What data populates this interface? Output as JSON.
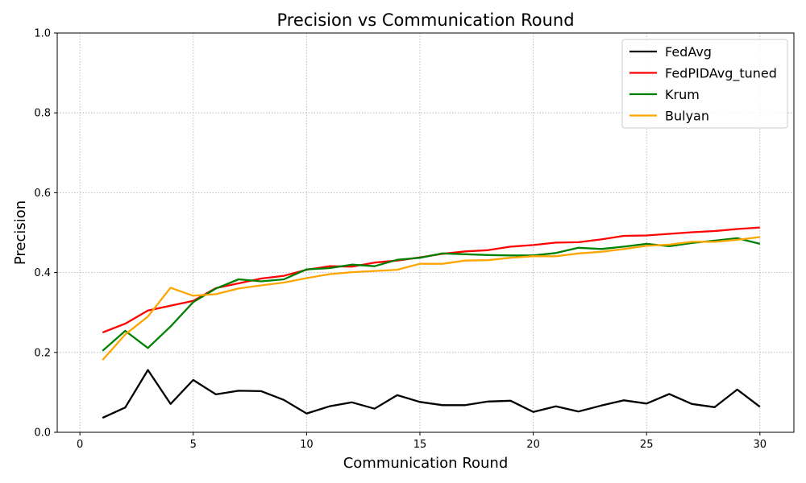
{
  "chart_data": {
    "type": "line",
    "title": "Precision vs Communication Round",
    "xlabel": "Communication Round",
    "ylabel": "Precision",
    "xlim": [
      -1,
      31.5
    ],
    "ylim": [
      0,
      1.0
    ],
    "xticks": [
      0,
      5,
      10,
      15,
      20,
      25,
      30
    ],
    "yticks": [
      0.0,
      0.2,
      0.4,
      0.6,
      0.8,
      1.0
    ],
    "xtick_labels": [
      "0",
      "5",
      "10",
      "15",
      "20",
      "25",
      "30"
    ],
    "ytick_labels": [
      "0.0",
      "0.2",
      "0.4",
      "0.6",
      "0.8",
      "1.0"
    ],
    "grid": true,
    "legend_position": "top-right",
    "x": [
      1,
      2,
      3,
      4,
      5,
      6,
      7,
      8,
      9,
      10,
      11,
      12,
      13,
      14,
      15,
      16,
      17,
      18,
      19,
      20,
      21,
      22,
      23,
      24,
      25,
      26,
      27,
      28,
      29,
      30
    ],
    "series": [
      {
        "name": "FedAvg",
        "color": "#000000",
        "values": [
          0.036,
          0.062,
          0.156,
          0.071,
          0.131,
          0.095,
          0.104,
          0.103,
          0.081,
          0.047,
          0.065,
          0.075,
          0.059,
          0.093,
          0.076,
          0.068,
          0.068,
          0.077,
          0.079,
          0.051,
          0.065,
          0.052,
          0.067,
          0.08,
          0.072,
          0.096,
          0.071,
          0.063,
          0.107,
          0.064
        ]
      },
      {
        "name": "FedPIDAvg_tuned",
        "color": "#ff0000",
        "values": [
          0.25,
          0.272,
          0.305,
          0.317,
          0.329,
          0.361,
          0.373,
          0.385,
          0.392,
          0.407,
          0.416,
          0.415,
          0.425,
          0.43,
          0.438,
          0.447,
          0.453,
          0.456,
          0.465,
          0.469,
          0.475,
          0.476,
          0.483,
          0.492,
          0.493,
          0.497,
          0.501,
          0.504,
          0.509,
          0.513
        ]
      },
      {
        "name": "Krum",
        "color": "#008000",
        "values": [
          0.204,
          0.254,
          0.211,
          0.265,
          0.326,
          0.36,
          0.383,
          0.378,
          0.383,
          0.408,
          0.411,
          0.42,
          0.416,
          0.432,
          0.437,
          0.448,
          0.446,
          0.444,
          0.443,
          0.443,
          0.449,
          0.462,
          0.459,
          0.465,
          0.472,
          0.466,
          0.474,
          0.48,
          0.486,
          0.472
        ]
      },
      {
        "name": "Bulyan",
        "color": "#ffa500",
        "values": [
          0.181,
          0.245,
          0.29,
          0.362,
          0.342,
          0.346,
          0.36,
          0.368,
          0.375,
          0.386,
          0.396,
          0.401,
          0.404,
          0.407,
          0.422,
          0.422,
          0.43,
          0.431,
          0.437,
          0.441,
          0.441,
          0.448,
          0.452,
          0.459,
          0.467,
          0.47,
          0.477,
          0.477,
          0.482,
          0.489
        ]
      }
    ]
  }
}
